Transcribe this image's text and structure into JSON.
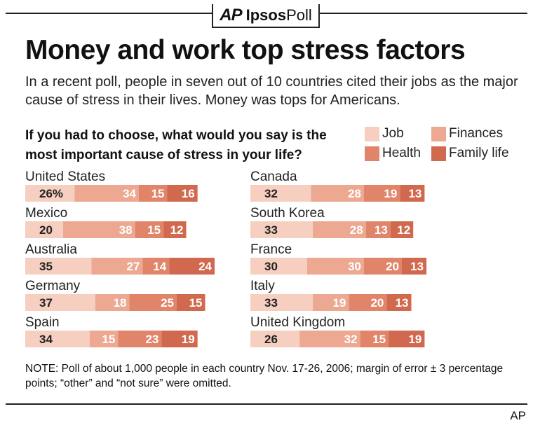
{
  "brand": {
    "ap": "AP",
    "ipsos": "Ipsos",
    "poll": "Poll"
  },
  "title": "Money and work top stress factors",
  "subtitle": "In a recent poll, people in seven out of 10 countries cited their jobs as the major cause of stress in their lives. Money was tops for Americans.",
  "question": "If you had to choose, what would you say is the most important cause of stress in your life?",
  "note": "NOTE: Poll of about 1,000 people in each country Nov. 17-26, 2006; margin of error ± 3 percentage points; “other” and “not sure” were omitted.",
  "credit": "AP",
  "colors": {
    "job": "#f6cfc0",
    "finances": "#eda892",
    "health": "#e1856a",
    "family": "#d1694f",
    "dark_label": "#222222",
    "light_label": "#ffffff"
  },
  "legend": {
    "job": "Job",
    "finances": "Finances",
    "health": "Health",
    "family": "Family life"
  },
  "chart_data": {
    "type": "bar",
    "orientation": "horizontal",
    "stacked": true,
    "percent_label_first": "26%",
    "series_names": [
      "Job",
      "Finances",
      "Health",
      "Family life"
    ],
    "countries": [
      {
        "name": "United States",
        "values": [
          26,
          34,
          15,
          16
        ]
      },
      {
        "name": "Mexico",
        "values": [
          20,
          38,
          15,
          12
        ]
      },
      {
        "name": "Australia",
        "values": [
          35,
          27,
          14,
          24
        ]
      },
      {
        "name": "Germany",
        "values": [
          37,
          18,
          25,
          15
        ]
      },
      {
        "name": "Spain",
        "values": [
          34,
          15,
          23,
          19
        ]
      },
      {
        "name": "Canada",
        "values": [
          32,
          28,
          19,
          13
        ]
      },
      {
        "name": "South Korea",
        "values": [
          33,
          28,
          13,
          12
        ]
      },
      {
        "name": "France",
        "values": [
          30,
          30,
          20,
          13
        ]
      },
      {
        "name": "Italy",
        "values": [
          33,
          19,
          20,
          13
        ]
      },
      {
        "name": "United Kingdom",
        "values": [
          26,
          32,
          15,
          19
        ]
      }
    ]
  }
}
